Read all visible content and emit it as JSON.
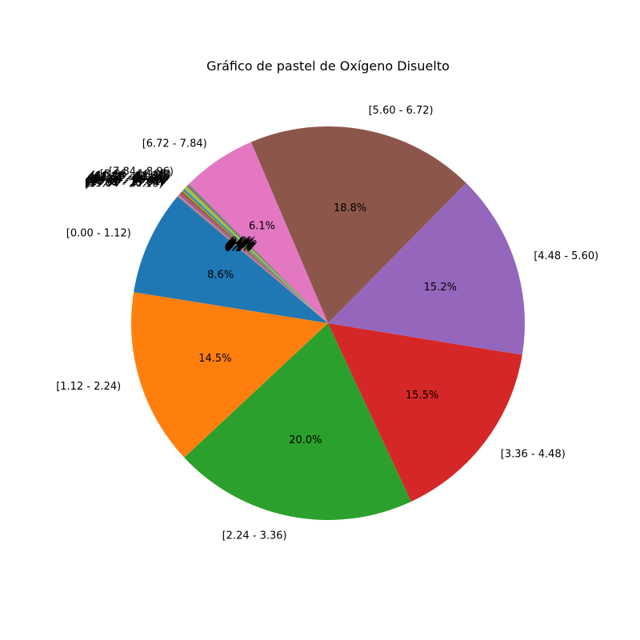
{
  "chart_data": {
    "type": "pie",
    "title": "Gráfico de pastel de Oxígeno Disuelto",
    "start_angle_deg": 140,
    "direction": "counterclockwise",
    "slices": [
      {
        "label": "[0.00 - 1.12)",
        "value": 8.6,
        "pct_label": "8.6%",
        "color": "#1f77b4"
      },
      {
        "label": "[1.12 - 2.24)",
        "value": 14.5,
        "pct_label": "14.5%",
        "color": "#ff7f0e"
      },
      {
        "label": "[2.24 - 3.36)",
        "value": 20.0,
        "pct_label": "20.0%",
        "color": "#2ca02c"
      },
      {
        "label": "[3.36 - 4.48)",
        "value": 15.5,
        "pct_label": "15.5%",
        "color": "#d62728"
      },
      {
        "label": "[4.48 - 5.60)",
        "value": 15.2,
        "pct_label": "15.2%",
        "color": "#9467bd"
      },
      {
        "label": "[5.60 - 6.72)",
        "value": 18.8,
        "pct_label": "18.8%",
        "color": "#8c564b"
      },
      {
        "label": "[6.72 - 7.84)",
        "value": 6.1,
        "pct_label": "6.1%",
        "color": "#e377c2"
      },
      {
        "label": "[7.84 - 8.96)",
        "value": 0.3,
        "pct_label": "0.3%",
        "color": "#7f7f7f"
      },
      {
        "label": "[8.96 - 10.08)",
        "value": 0.2,
        "pct_label": "0.2%",
        "color": "#bcbd22"
      },
      {
        "label": "[10.08 - 11.20)",
        "value": 0.1,
        "pct_label": "0.1%",
        "color": "#17becf"
      },
      {
        "label": "[11.20 - 12.32)",
        "value": 0.1,
        "pct_label": "0.1%",
        "color": "#1f77b4"
      },
      {
        "label": "[12.32 - 13.44)",
        "value": 0.1,
        "pct_label": "0.1%",
        "color": "#ff7f0e"
      },
      {
        "label": "[13.44 - 14.56)",
        "value": 0.1,
        "pct_label": "0.1%",
        "color": "#2ca02c"
      },
      {
        "label": "[14.56 - 15.68)",
        "value": 0.1,
        "pct_label": "0.1%",
        "color": "#d62728"
      },
      {
        "label": "[15.68 - 16.80)",
        "value": 0.1,
        "pct_label": "0.1%",
        "color": "#9467bd"
      },
      {
        "label": "[16.80 - 17.92)",
        "value": 0.1,
        "pct_label": "0.1%",
        "color": "#8c564b"
      },
      {
        "label": "[17.92 - 19.04)",
        "value": 0.1,
        "pct_label": "0.1%",
        "color": "#e377c2"
      },
      {
        "label": "[19.04 - 20.16)",
        "value": 0.1,
        "pct_label": "0.1%",
        "color": "#7f7f7f"
      }
    ]
  }
}
